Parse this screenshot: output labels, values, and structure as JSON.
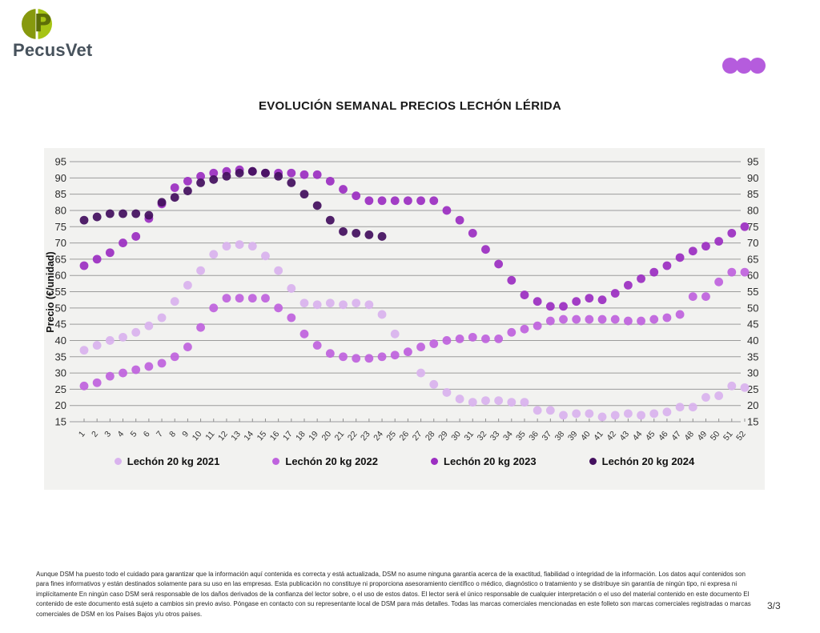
{
  "brand": {
    "logo_text": "PecusVet",
    "logo_letter": "P",
    "logo_color_left": "#87990e",
    "logo_color_right": "#a6c414"
  },
  "header": {
    "dots_color": "#b55cdd",
    "dots_count": 3
  },
  "title": "EVOLUCIÓN SEMANAL PRECIOS LECHÓN LÉRIDA",
  "chart_data": {
    "type": "scatter",
    "title": "EVOLUCIÓN SEMANAL PRECIOS LECHÓN LÉRIDA",
    "xlabel": "",
    "ylabel": "Precio (€/unidad)",
    "ylim": [
      15,
      95
    ],
    "ytick_step": 5,
    "grid": true,
    "legend_position": "bottom",
    "panel_background": "#f2f2f0",
    "gridline_color": "#9b9b9b",
    "axis_text_color": "#2c2c2c",
    "x": [
      1,
      2,
      3,
      4,
      5,
      6,
      7,
      8,
      9,
      10,
      11,
      12,
      13,
      14,
      15,
      16,
      17,
      18,
      19,
      20,
      21,
      22,
      23,
      24,
      25,
      26,
      27,
      28,
      29,
      30,
      31,
      32,
      33,
      34,
      35,
      36,
      37,
      38,
      39,
      40,
      41,
      42,
      43,
      44,
      45,
      46,
      47,
      48,
      49,
      50,
      51,
      52
    ],
    "series": [
      {
        "name": "Lechón 20 kg 2021",
        "color": "#d9b3ee",
        "values": [
          37,
          38.5,
          40,
          41,
          42.5,
          44.5,
          47,
          52,
          57,
          61.5,
          66.5,
          69,
          69.5,
          69,
          66,
          61.5,
          56,
          51.5,
          51,
          51.5,
          51,
          51.5,
          51,
          48,
          42,
          36.5,
          30,
          26.5,
          24,
          22,
          21,
          21.5,
          21.5,
          21,
          21,
          18.5,
          18.5,
          17,
          17.5,
          17.5,
          16.5,
          17,
          17.5,
          17,
          17.5,
          18,
          19.5,
          19.5,
          22.5,
          23,
          26,
          25.5
        ]
      },
      {
        "name": "Lechón 20 kg 2022",
        "color": "#bf63de",
        "values": [
          26,
          27,
          29,
          30,
          31,
          32,
          33,
          35,
          38,
          44,
          50,
          53,
          53,
          53,
          53,
          50,
          47,
          42,
          38.5,
          36,
          35,
          34.5,
          34.5,
          35,
          35.5,
          36.5,
          38,
          39,
          40,
          40.5,
          41,
          40.5,
          40.5,
          42.5,
          43.5,
          44.5,
          46,
          46.5,
          46.5,
          46.5,
          46.5,
          46.5,
          46,
          46,
          46.5,
          47,
          48,
          53.5,
          53.5,
          58,
          61,
          61
        ]
      },
      {
        "name": "Lechón 20 kg 2023",
        "color": "#9c2fc2",
        "values": [
          63,
          65,
          67,
          70,
          72,
          77.5,
          82,
          87,
          89,
          90.5,
          91.5,
          92,
          92.5,
          92,
          91.5,
          91.5,
          91.5,
          91,
          91,
          89,
          86.5,
          84.5,
          83,
          83,
          83,
          83,
          83,
          83,
          80,
          77,
          73,
          68,
          63.5,
          58.5,
          54,
          52,
          50.5,
          50.5,
          52,
          53,
          52.5,
          54.5,
          57,
          59,
          61,
          63,
          65.5,
          67.5,
          69,
          70.5,
          73,
          75
        ]
      },
      {
        "name": "Lechón 20 kg 2024",
        "color": "#44105f",
        "values": [
          77,
          78,
          79,
          79,
          79,
          78.5,
          82.5,
          84,
          86,
          88.5,
          89.5,
          90.5,
          91.5,
          92,
          91.5,
          90.5,
          88.5,
          85,
          81.5,
          77,
          73.5,
          73,
          72.5,
          72,
          null,
          null,
          null,
          null,
          null,
          null,
          null,
          null,
          null,
          null,
          null,
          null,
          null,
          null,
          null,
          null,
          null,
          null,
          null,
          null,
          null,
          null,
          null,
          null,
          null,
          null,
          null,
          null
        ]
      }
    ]
  },
  "footer": {
    "disclaimer": "Aunque DSM ha puesto todo el cuidado para garantizar que la información aquí contenida es correcta y está actualizada, DSM no asume ninguna garantía acerca de la exactitud, fiabilidad o integridad de la información. Los datos aquí contenidos son para fines informativos y están destinados solamente para su uso en las empresas. Esta publicación no constituye ni proporciona asesoramiento científico o médico, diagnóstico o tratamiento y se distribuye sin garantía de ningún tipo, ni expresa ni implícitamente En ningún caso DSM será responsable de los daños derivados de la confianza del lector sobre, o el uso de estos datos. El lector será el único responsable de cualquier interpretación o el uso del material contenido en este documento El contenido de este documento está sujeto a cambios sin previo aviso. Póngase en contacto con su representante local de DSM para más detalles. Todas las marcas comerciales mencionadas en este folleto son marcas comerciales registradas o marcas comerciales de DSM en los Países Bajos y/u otros países.",
    "page": "3/3"
  }
}
